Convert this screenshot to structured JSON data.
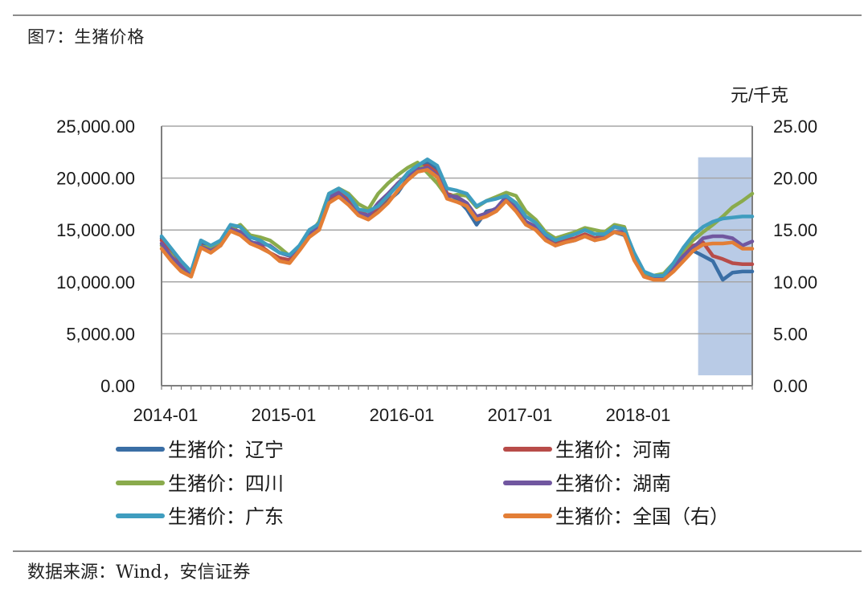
{
  "figure": {
    "title": "图7：生猪价格",
    "source": "数据来源：Wind，安信证券"
  },
  "chart_data": {
    "type": "line",
    "title": "生猪价格",
    "right_unit": "元/千克",
    "left_axis": {
      "min": 0,
      "max": 25000,
      "ticks": [
        "25,000.00",
        "20,000.00",
        "15,000.00",
        "10,000.00",
        "5,000.00",
        "0.00"
      ],
      "tick_values": [
        25000,
        20000,
        15000,
        10000,
        5000,
        0
      ]
    },
    "right_axis": {
      "min": 0,
      "max": 25,
      "ticks": [
        "25.00",
        "20.00",
        "15.00",
        "10.00",
        "5.00",
        "0.00"
      ],
      "tick_values": [
        25,
        20,
        15,
        10,
        5,
        0
      ]
    },
    "x_axis": {
      "start": "2014-01",
      "months": 61,
      "labels": [
        "2014-01",
        "2015-01",
        "2016-01",
        "2017-01",
        "2018-01"
      ],
      "label_month_index": [
        0,
        12,
        24,
        36,
        48
      ]
    },
    "highlight": {
      "from_month": 54.5,
      "to_month": 60,
      "y_low": 1,
      "y_high": 22,
      "unit": "right axis",
      "color": "#b9cbe6"
    },
    "grid": true,
    "legend_position": "bottom",
    "series": [
      {
        "name": "生猪价：辽宁",
        "color": "#3a6ea5",
        "values": [
          14.2,
          12.8,
          11.8,
          10.8,
          13.8,
          13.3,
          13.9,
          15.2,
          14.8,
          13.9,
          13.5,
          12.8,
          12.3,
          12.1,
          13.3,
          14.6,
          15.3,
          18.0,
          18.5,
          18.0,
          16.6,
          16.2,
          16.8,
          17.8,
          18.6,
          20.0,
          21.0,
          21.5,
          20.8,
          18.5,
          18.0,
          17.0,
          15.5,
          16.8,
          17.0,
          18.0,
          17.0,
          15.8,
          15.3,
          14.2,
          13.8,
          14.0,
          14.2,
          14.6,
          14.2,
          14.4,
          14.8,
          14.5,
          12.5,
          10.8,
          10.4,
          10.3,
          11.5,
          12.5,
          13.0,
          12.5,
          12.0,
          10.2,
          10.9,
          11.0,
          11.0
        ]
      },
      {
        "name": "生猪价：河南",
        "color": "#b84c49",
        "values": [
          14.0,
          12.6,
          11.5,
          10.7,
          13.5,
          13.0,
          13.7,
          15.2,
          14.8,
          13.8,
          13.5,
          12.8,
          12.3,
          12.1,
          13.2,
          14.5,
          15.2,
          18.0,
          18.6,
          17.9,
          16.8,
          16.4,
          17.2,
          18.2,
          19.5,
          20.4,
          21.0,
          21.2,
          20.5,
          18.5,
          18.2,
          17.5,
          16.2,
          16.5,
          17.0,
          18.1,
          17.0,
          15.8,
          15.3,
          14.2,
          13.6,
          14.0,
          14.2,
          14.6,
          14.2,
          14.5,
          14.8,
          14.6,
          12.3,
          10.6,
          10.3,
          10.3,
          11.2,
          12.5,
          13.5,
          13.8,
          12.5,
          12.2,
          11.8,
          11.7,
          11.7
        ]
      },
      {
        "name": "生猪价：四川",
        "color": "#8aab4c",
        "values": [
          13.5,
          12.6,
          11.2,
          10.5,
          13.4,
          13.3,
          13.9,
          15.0,
          15.5,
          14.5,
          14.3,
          14.0,
          13.3,
          12.5,
          13.2,
          14.5,
          15.8,
          18.5,
          19.0,
          18.5,
          17.5,
          17.0,
          18.5,
          19.5,
          20.3,
          21.0,
          21.5,
          20.5,
          19.5,
          18.2,
          18.4,
          18.3,
          17.2,
          17.8,
          18.2,
          18.6,
          18.3,
          16.8,
          16.0,
          14.8,
          14.2,
          14.5,
          14.8,
          15.2,
          15.0,
          14.8,
          15.5,
          15.3,
          12.5,
          10.8,
          10.6,
          10.8,
          11.8,
          13.0,
          14.0,
          14.8,
          15.5,
          16.3,
          17.2,
          17.8,
          18.5
        ]
      },
      {
        "name": "生猪价：湖南",
        "color": "#7157a0",
        "values": [
          13.7,
          12.4,
          11.5,
          10.8,
          13.4,
          13.0,
          13.5,
          15.1,
          14.8,
          13.8,
          13.7,
          13.5,
          12.8,
          12.5,
          13.3,
          14.6,
          15.2,
          18.2,
          18.6,
          17.5,
          16.6,
          16.4,
          17.6,
          18.5,
          19.5,
          20.3,
          20.8,
          21.0,
          20.2,
          18.3,
          18.2,
          17.6,
          16.3,
          16.6,
          17.1,
          18.2,
          17.3,
          15.8,
          15.3,
          14.2,
          13.5,
          13.8,
          14.0,
          14.4,
          14.0,
          14.3,
          14.8,
          14.8,
          12.3,
          10.5,
          10.3,
          10.3,
          11.4,
          12.5,
          13.3,
          14.2,
          14.4,
          14.4,
          14.2,
          13.5,
          13.9
        ]
      },
      {
        "name": "生猪价：广东",
        "color": "#3f9dbf",
        "values": [
          14.4,
          13.2,
          12.0,
          11.0,
          14.0,
          13.5,
          14.0,
          15.5,
          15.3,
          14.3,
          14.0,
          13.4,
          12.8,
          12.6,
          13.5,
          15.0,
          15.6,
          18.5,
          19.0,
          18.3,
          17.0,
          16.8,
          17.3,
          18.3,
          19.3,
          20.5,
          21.2,
          21.8,
          21.2,
          19.0,
          18.8,
          18.5,
          17.3,
          17.8,
          18.0,
          18.3,
          17.6,
          16.3,
          15.7,
          14.6,
          14.0,
          14.3,
          14.6,
          15.0,
          14.6,
          14.6,
          15.3,
          15.1,
          12.8,
          11.0,
          10.6,
          10.6,
          11.8,
          13.3,
          14.5,
          15.3,
          15.8,
          16.1,
          16.2,
          16.3,
          16.3
        ]
      },
      {
        "name": "生猪价：全国（右）",
        "color": "#e37e36",
        "values": [
          13.2,
          12.0,
          11.0,
          10.5,
          13.3,
          12.8,
          13.5,
          14.9,
          14.5,
          13.7,
          13.3,
          12.8,
          12.0,
          11.8,
          13.0,
          14.3,
          15.0,
          17.6,
          18.2,
          17.4,
          16.4,
          16.0,
          16.7,
          17.6,
          18.8,
          19.8,
          20.6,
          20.8,
          20.1,
          18.0,
          17.7,
          17.3,
          16.0,
          16.3,
          16.8,
          17.8,
          16.8,
          15.5,
          15.0,
          14.0,
          13.5,
          13.8,
          14.0,
          14.4,
          14.0,
          14.2,
          14.8,
          14.6,
          12.1,
          10.5,
          10.2,
          10.2,
          11.0,
          12.0,
          13.0,
          13.6,
          13.7,
          13.7,
          13.8,
          13.2,
          13.2
        ]
      }
    ]
  }
}
